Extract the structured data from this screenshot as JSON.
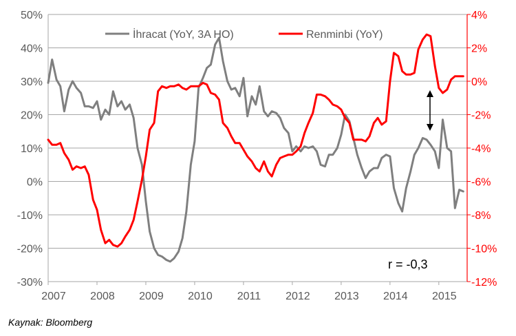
{
  "chart_data": {
    "type": "line",
    "x_ticks": [
      "2007",
      "2008",
      "2009",
      "2010",
      "2011",
      "2012",
      "2013",
      "2014",
      "2015"
    ],
    "y_left": {
      "min": -30,
      "max": 50,
      "step": 10,
      "tick_labels": [
        "-30%",
        "-20%",
        "-10%",
        "0%",
        "10%",
        "20%",
        "30%",
        "40%",
        "50%"
      ]
    },
    "y_right": {
      "min": -12,
      "max": 4,
      "step": 2,
      "tick_labels": [
        "-12%",
        "-10%",
        "-8%",
        "-6%",
        "-4%",
        "-2%",
        "0%",
        "2%",
        "4%"
      ]
    },
    "x_range": [
      2007.0,
      2015.58
    ],
    "grid": "horizontal",
    "legend_position": "top",
    "annotation": "r = -0,3",
    "series": [
      {
        "name": "İhracat (YoY, 3A HO)",
        "axis": "left",
        "color": "#7f7f7f",
        "x": [
          2007.0,
          2007.08,
          2007.17,
          2007.25,
          2007.33,
          2007.42,
          2007.5,
          2007.58,
          2007.67,
          2007.75,
          2007.83,
          2007.92,
          2008.0,
          2008.08,
          2008.17,
          2008.25,
          2008.33,
          2008.42,
          2008.5,
          2008.58,
          2008.67,
          2008.75,
          2008.83,
          2008.92,
          2009.0,
          2009.08,
          2009.17,
          2009.25,
          2009.33,
          2009.42,
          2009.5,
          2009.58,
          2009.67,
          2009.75,
          2009.83,
          2009.92,
          2010.0,
          2010.08,
          2010.17,
          2010.25,
          2010.33,
          2010.42,
          2010.5,
          2010.58,
          2010.67,
          2010.75,
          2010.83,
          2010.92,
          2011.0,
          2011.08,
          2011.17,
          2011.25,
          2011.33,
          2011.42,
          2011.5,
          2011.58,
          2011.67,
          2011.75,
          2011.83,
          2011.92,
          2012.0,
          2012.08,
          2012.17,
          2012.25,
          2012.33,
          2012.42,
          2012.5,
          2012.58,
          2012.67,
          2012.75,
          2012.83,
          2012.92,
          2013.0,
          2013.08,
          2013.17,
          2013.25,
          2013.33,
          2013.42,
          2013.5,
          2013.58,
          2013.67,
          2013.75,
          2013.83,
          2013.92,
          2014.0,
          2014.08,
          2014.17,
          2014.25,
          2014.33,
          2014.42,
          2014.5,
          2014.58,
          2014.67,
          2014.75,
          2014.83,
          2014.92,
          2015.0,
          2015.08,
          2015.17,
          2015.25,
          2015.33,
          2015.42,
          2015.5
        ],
        "values": [
          29.5,
          36.5,
          30.5,
          28.5,
          21,
          27.5,
          30,
          28,
          26.5,
          22.5,
          22.5,
          22,
          24,
          18.5,
          21.5,
          20,
          27,
          22.5,
          24,
          21.5,
          23,
          19,
          10,
          5,
          -6,
          -15,
          -20,
          -22,
          -22.5,
          -23.5,
          -24,
          -23,
          -21,
          -17,
          -9,
          5,
          12,
          28,
          31,
          34,
          35,
          41,
          43,
          36,
          30,
          27.5,
          28,
          25.5,
          31,
          19.5,
          25.5,
          23,
          28.5,
          21,
          19.5,
          21,
          20.5,
          19,
          16,
          14.5,
          9,
          10.5,
          9,
          10.5,
          10,
          10.5,
          9,
          5,
          4.5,
          8,
          8,
          10,
          14,
          20,
          18,
          13,
          8,
          4,
          1,
          3,
          4,
          4,
          7,
          8,
          7.5,
          -2,
          -6.5,
          -9,
          -2,
          3,
          8,
          10,
          13,
          12.5,
          11,
          9,
          4,
          18.5,
          10,
          9,
          -8,
          -2.5,
          -3
        ]
      },
      {
        "name": "Renminbi (YoY)",
        "axis": "right",
        "color": "#ff0000",
        "x": [
          2007.0,
          2007.08,
          2007.17,
          2007.25,
          2007.33,
          2007.42,
          2007.5,
          2007.58,
          2007.67,
          2007.75,
          2007.83,
          2007.92,
          2008.0,
          2008.08,
          2008.17,
          2008.25,
          2008.33,
          2008.42,
          2008.5,
          2008.58,
          2008.67,
          2008.75,
          2008.83,
          2008.92,
          2009.0,
          2009.08,
          2009.17,
          2009.25,
          2009.33,
          2009.42,
          2009.5,
          2009.58,
          2009.67,
          2009.75,
          2009.83,
          2009.92,
          2010.0,
          2010.08,
          2010.17,
          2010.25,
          2010.33,
          2010.42,
          2010.5,
          2010.58,
          2010.67,
          2010.75,
          2010.83,
          2010.92,
          2011.0,
          2011.08,
          2011.17,
          2011.25,
          2011.33,
          2011.42,
          2011.5,
          2011.58,
          2011.67,
          2011.75,
          2011.83,
          2011.92,
          2012.0,
          2012.08,
          2012.17,
          2012.25,
          2012.33,
          2012.42,
          2012.5,
          2012.58,
          2012.67,
          2012.75,
          2012.83,
          2012.92,
          2013.0,
          2013.08,
          2013.17,
          2013.25,
          2013.33,
          2013.42,
          2013.5,
          2013.58,
          2013.67,
          2013.75,
          2013.83,
          2013.92,
          2014.0,
          2014.08,
          2014.17,
          2014.25,
          2014.33,
          2014.42,
          2014.5,
          2014.58,
          2014.67,
          2014.75,
          2014.83,
          2014.92,
          2015.0,
          2015.08,
          2015.17,
          2015.25,
          2015.33,
          2015.42,
          2015.5
        ],
        "values": [
          -3.5,
          -3.8,
          -3.8,
          -3.7,
          -4.3,
          -4.7,
          -5.3,
          -5.1,
          -5.2,
          -5.1,
          -5.6,
          -7.1,
          -7.7,
          -8.9,
          -9.7,
          -9.5,
          -9.8,
          -9.9,
          -9.7,
          -9.3,
          -8.9,
          -8.3,
          -7.2,
          -5.9,
          -4.5,
          -2.9,
          -2.5,
          -0.6,
          -0.3,
          -0.4,
          -0.3,
          -0.3,
          -0.2,
          -0.4,
          -0.5,
          -0.3,
          -0.3,
          -0.3,
          -0.1,
          -0.2,
          -0.7,
          -0.8,
          -1.1,
          -2.5,
          -2.8,
          -3.3,
          -3.7,
          -3.7,
          -4.1,
          -4.5,
          -4.8,
          -5.2,
          -5.4,
          -4.8,
          -5.4,
          -5.7,
          -5.0,
          -4.6,
          -4.5,
          -4.4,
          -4.4,
          -4.2,
          -3.9,
          -3.1,
          -2.5,
          -1.9,
          -0.8,
          -0.8,
          -0.9,
          -1.1,
          -1.4,
          -1.5,
          -1.7,
          -2.2,
          -2.5,
          -3.5,
          -3.5,
          -3.5,
          -3.6,
          -3.3,
          -2.5,
          -2.2,
          -2.6,
          -2.4,
          0.0,
          1.7,
          1.5,
          0.6,
          0.4,
          0.4,
          0.5,
          1.9,
          2.5,
          2.8,
          2.7,
          0.9,
          -0.4,
          -0.7,
          -0.5,
          0.1,
          0.3,
          0.3,
          0.3
        ]
      }
    ]
  },
  "source": "Kaynak: Bloomberg"
}
